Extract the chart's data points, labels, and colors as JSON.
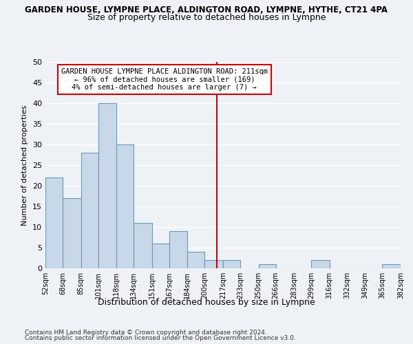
{
  "title": "GARDEN HOUSE, LYMPNE PLACE, ALDINGTON ROAD, LYMPNE, HYTHE, CT21 4PA",
  "subtitle": "Size of property relative to detached houses in Lympne",
  "xlabel": "Distribution of detached houses by size in Lympne",
  "ylabel": "Number of detached properties",
  "bar_color": "#c8d8e8",
  "bar_edge_color": "#6699bb",
  "bins": [
    52,
    68,
    85,
    101,
    118,
    134,
    151,
    167,
    184,
    200,
    217,
    233,
    250,
    266,
    283,
    299,
    316,
    332,
    349,
    365,
    382
  ],
  "counts": [
    22,
    17,
    28,
    40,
    30,
    11,
    6,
    9,
    4,
    2,
    2,
    0,
    1,
    0,
    0,
    2,
    0,
    0,
    0,
    1
  ],
  "tick_labels": [
    "52sqm",
    "68sqm",
    "85sqm",
    "101sqm",
    "118sqm",
    "134sqm",
    "151sqm",
    "167sqm",
    "184sqm",
    "200sqm",
    "217sqm",
    "233sqm",
    "250sqm",
    "266sqm",
    "283sqm",
    "299sqm",
    "316sqm",
    "332sqm",
    "349sqm",
    "365sqm",
    "382sqm"
  ],
  "vline_x": 211,
  "vline_color": "#cc0000",
  "ylim": [
    0,
    50
  ],
  "yticks": [
    0,
    5,
    10,
    15,
    20,
    25,
    30,
    35,
    40,
    45,
    50
  ],
  "annotation_line1": "GARDEN HOUSE LYMPNE PLACE ALDINGTON ROAD: 211sqm",
  "annotation_line2": "← 96% of detached houses are smaller (169)",
  "annotation_line3": "4% of semi-detached houses are larger (7) →",
  "footer_line1": "Contains HM Land Registry data © Crown copyright and database right 2024.",
  "footer_line2": "Contains public sector information licensed under the Open Government Licence v3.0.",
  "bg_color": "#eef2f6",
  "grid_color": "#ffffff"
}
